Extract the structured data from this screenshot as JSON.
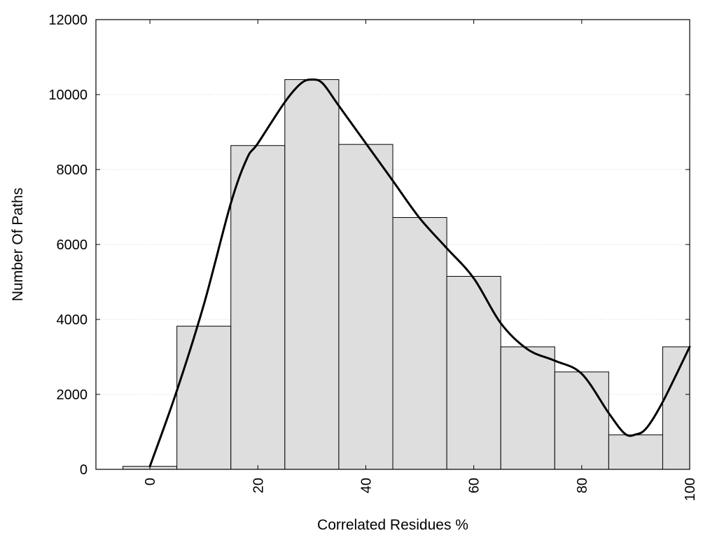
{
  "chart_data": {
    "type": "bar",
    "title": "",
    "xlabel": "Correlated Residues %",
    "ylabel": "Number Of Paths",
    "xlim": [
      -10,
      100
    ],
    "ylim": [
      0,
      12000
    ],
    "x_ticks": [
      "0",
      "20",
      "40",
      "60",
      "80",
      "100"
    ],
    "y_ticks": [
      "0",
      "2000",
      "4000",
      "6000",
      "8000",
      "10000",
      "12000"
    ],
    "grid": true,
    "bin_width": 10,
    "categories": [
      "0",
      "10",
      "20",
      "30",
      "40",
      "50",
      "60",
      "70",
      "80",
      "90",
      "100"
    ],
    "values": [
      80,
      3820,
      8640,
      10400,
      8670,
      6720,
      5150,
      3270,
      2600,
      920,
      3270
    ],
    "bar_color": "#dedede",
    "density_curve": {
      "x": [
        0,
        5,
        10,
        15,
        18,
        20,
        25,
        28,
        30,
        32,
        35,
        40,
        45,
        50,
        55,
        60,
        65,
        70,
        75,
        80,
        85,
        88,
        90,
        92,
        95,
        100
      ],
      "y": [
        80,
        2100,
        4400,
        7100,
        8300,
        8700,
        9800,
        10300,
        10400,
        10300,
        9700,
        8700,
        7700,
        6700,
        5900,
        5100,
        3900,
        3200,
        2900,
        2550,
        1500,
        950,
        930,
        1100,
        1800,
        3270
      ]
    }
  }
}
